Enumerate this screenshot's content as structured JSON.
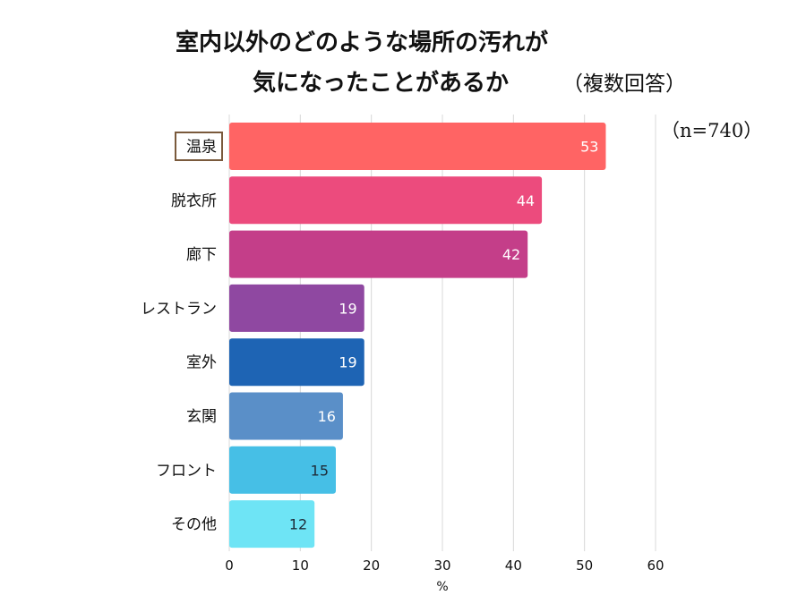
{
  "chart_data": {
    "type": "bar",
    "orientation": "horizontal",
    "title": [
      "室内以外のどのような場所の汚れが",
      "気になったことがあるか"
    ],
    "title_note": "（複数回答）",
    "sample_note": "（n=740）",
    "xlabel": "%",
    "xlim": [
      0,
      60
    ],
    "xticks": [
      0,
      10,
      20,
      30,
      40,
      50,
      60
    ],
    "categories": [
      "温泉",
      "脱衣所",
      "廊下",
      "レストラン",
      "室外",
      "玄関",
      "フロント",
      "その他"
    ],
    "values": [
      53,
      44,
      42,
      19,
      19,
      16,
      15,
      12
    ],
    "highlighted_category": "温泉",
    "grid": true,
    "colors": [
      "#ff6464",
      "#ec4b7d",
      "#c43e89",
      "#8f48a1",
      "#1e64b4",
      "#5a8fc8",
      "#46bfe6",
      "#6ee4f5"
    ],
    "dark_value_labels": [
      "フロント",
      "その他"
    ]
  }
}
